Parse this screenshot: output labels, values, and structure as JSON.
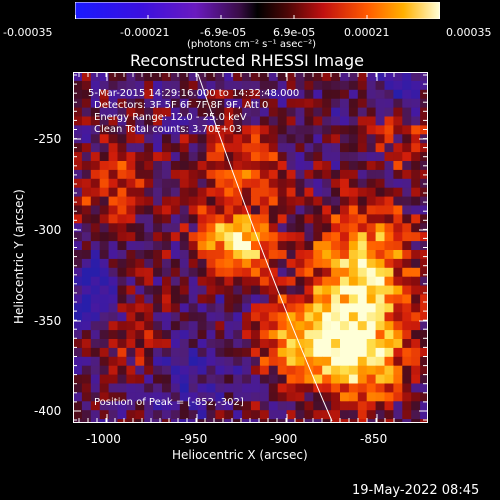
{
  "colorbar": {
    "ticks": [
      "-0.00035",
      "-0.00021",
      "-6.9e-05",
      "6.9e-05",
      "0.00021",
      "0.00035"
    ],
    "unit_label": "(photons cm⁻² s⁻¹ asec⁻²)"
  },
  "title": "Reconstructed RHESSI Image",
  "info": {
    "time_range": "5-Mar-2015 14:29:16.000 to 14:32:48.000",
    "detectors": "Detectors: 3F 5F 6F 7F 8F 9F, Att 0",
    "energy": "Energy Range: 12.0 - 25.0 keV",
    "algorithm": "Clean     Total counts: 3.70E+03",
    "peak": "Position of Peak = [-852,-302]"
  },
  "axes": {
    "xlabel": "Heliocentric X (arcsec)",
    "ylabel": "Heliocentric Y (arcsec)",
    "xticks": [
      "-1000",
      "-950",
      "-900",
      "-850"
    ],
    "yticks": [
      "-250",
      "-300",
      "-350",
      "-400"
    ]
  },
  "footer": {
    "date": "19-May-2022 08:45"
  }
}
